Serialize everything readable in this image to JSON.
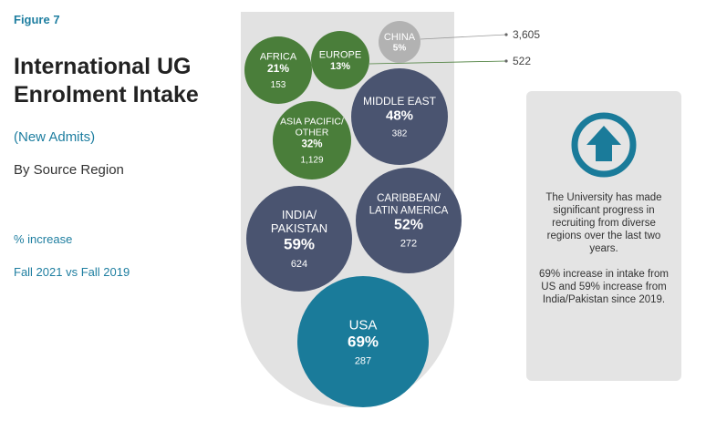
{
  "figure_label": "Figure 7",
  "title_lines": [
    "International UG",
    "Enrolment Intake"
  ],
  "subtitle": "(New Admits)",
  "byline": "By Source Region",
  "legend_note": "% increase",
  "period": "Fall 2021 vs Fall 2019",
  "colors": {
    "accent": "#1e7ea0",
    "green": "#4a7e3a",
    "navy": "#4a5470",
    "teal": "#1a7b9a",
    "grey": "#b2b2b2",
    "container": "#e2e2e2"
  },
  "chart_data": {
    "type": "bubble",
    "title": "International UG Enrolment Intake",
    "series": [
      {
        "region_lines": [
          "CHINA"
        ],
        "percent": "5%",
        "count": "3,605",
        "color": "grey",
        "count_outside": true
      },
      {
        "region_lines": [
          "AFRICA"
        ],
        "percent": "21%",
        "count": "153",
        "color": "green"
      },
      {
        "region_lines": [
          "EUROPE"
        ],
        "percent": "13%",
        "count": "522",
        "color": "green",
        "count_outside": true
      },
      {
        "region_lines": [
          "MIDDLE EAST"
        ],
        "percent": "48%",
        "count": "382",
        "color": "navy"
      },
      {
        "region_lines": [
          "ASIA PACIFIC/",
          "OTHER"
        ],
        "percent": "32%",
        "count": "1,129",
        "color": "green"
      },
      {
        "region_lines": [
          "CARIBBEAN/",
          "LATIN AMERICA"
        ],
        "percent": "52%",
        "count": "272",
        "color": "navy"
      },
      {
        "region_lines": [
          "INDIA/",
          "PAKISTAN"
        ],
        "percent": "59%",
        "count": "624",
        "color": "navy"
      },
      {
        "region_lines": [
          "USA"
        ],
        "percent": "69%",
        "count": "287",
        "color": "teal"
      }
    ]
  },
  "info_box": {
    "icon": "up-arrow-circle-icon",
    "paragraph1": "The University has made significant progress in recruiting from diverse regions over the last two years.",
    "paragraph2": "69% increase in intake from US and 59% increase from India/Pakistan since 2019."
  }
}
